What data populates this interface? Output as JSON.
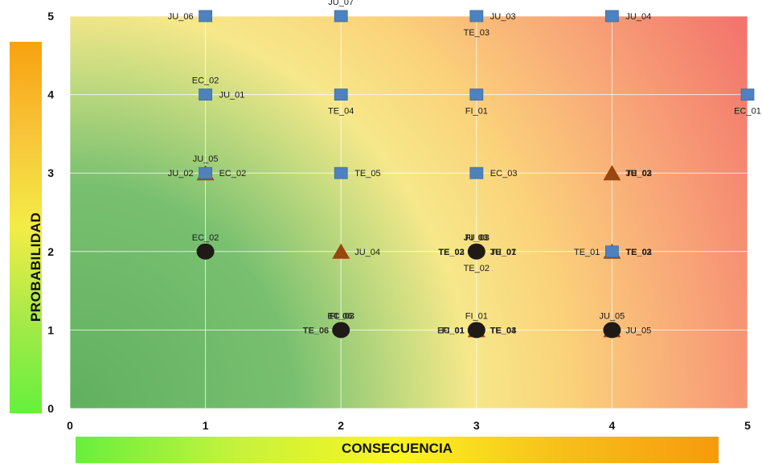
{
  "chart_data": {
    "type": "scatter",
    "xlabel": "CONSECUENCIA",
    "ylabel": "PROBABILIDAD",
    "xlim": [
      0,
      5
    ],
    "ylim": [
      0,
      5
    ],
    "xticks": [
      "0",
      "1",
      "2",
      "3",
      "4",
      "5"
    ],
    "yticks": [
      "0",
      "1",
      "2",
      "3",
      "4",
      "5"
    ],
    "grid": true,
    "background": "green-yellow-red risk gradient (low at bottom-left, high at top-right)",
    "colors": {
      "square": "#4f81bd",
      "triangle": "#994710",
      "circle": "#1f1a17"
    },
    "series": [
      {
        "marker": "square",
        "points": [
          {
            "x": 1,
            "y": 5
          },
          {
            "x": 2,
            "y": 5
          },
          {
            "x": 3,
            "y": 5
          },
          {
            "x": 4,
            "y": 5
          },
          {
            "x": 1,
            "y": 4
          },
          {
            "x": 2,
            "y": 4
          },
          {
            "x": 3,
            "y": 4
          },
          {
            "x": 5,
            "y": 4
          },
          {
            "x": 1,
            "y": 3
          },
          {
            "x": 2,
            "y": 3
          },
          {
            "x": 3,
            "y": 3
          },
          {
            "x": 4,
            "y": 2
          }
        ]
      },
      {
        "marker": "triangle",
        "points": [
          {
            "x": 1,
            "y": 3
          },
          {
            "x": 4,
            "y": 3
          },
          {
            "x": 2,
            "y": 2
          },
          {
            "x": 4,
            "y": 2
          },
          {
            "x": 3,
            "y": 1
          },
          {
            "x": 4,
            "y": 1
          }
        ]
      },
      {
        "marker": "circle",
        "points": [
          {
            "x": 1,
            "y": 2
          },
          {
            "x": 3,
            "y": 2
          },
          {
            "x": 2,
            "y": 1
          },
          {
            "x": 3,
            "y": 1
          },
          {
            "x": 4,
            "y": 1
          }
        ]
      }
    ],
    "labels": [
      {
        "x": 1,
        "y": 5,
        "text": "JU_06",
        "pos": "left"
      },
      {
        "x": 2,
        "y": 5,
        "text": "JU_07",
        "pos": "top"
      },
      {
        "x": 3,
        "y": 5,
        "text": "JU_03",
        "pos": "right"
      },
      {
        "x": 3,
        "y": 5,
        "text": "TE_03",
        "pos": "bottom"
      },
      {
        "x": 4,
        "y": 5,
        "text": "JU_04",
        "pos": "right"
      },
      {
        "x": 1,
        "y": 4,
        "text": "EC_02",
        "pos": "top"
      },
      {
        "x": 1,
        "y": 4,
        "text": "JU_01",
        "pos": "right"
      },
      {
        "x": 2,
        "y": 4,
        "text": "TE_04",
        "pos": "bottom"
      },
      {
        "x": 3,
        "y": 4,
        "text": "FI_01",
        "pos": "bottom"
      },
      {
        "x": 5,
        "y": 4,
        "text": "EC_01",
        "pos": "bottom"
      },
      {
        "x": 1,
        "y": 3,
        "text": "JU_05",
        "pos": "top"
      },
      {
        "x": 1,
        "y": 3,
        "text": "JU_02",
        "pos": "left"
      },
      {
        "x": 1,
        "y": 3,
        "text": "EC_02",
        "pos": "right"
      },
      {
        "x": 2,
        "y": 3,
        "text": "TE_05",
        "pos": "right"
      },
      {
        "x": 3,
        "y": 3,
        "text": "EC_03",
        "pos": "right"
      },
      {
        "x": 4,
        "y": 3,
        "text": "JU_03",
        "pos": "right",
        "bold": true
      },
      {
        "x": 4,
        "y": 3,
        "text": "TE_02",
        "pos": "right",
        "bold": true
      },
      {
        "x": 1,
        "y": 2,
        "text": "EC_02",
        "pos": "top"
      },
      {
        "x": 2,
        "y": 2,
        "text": "JU_04",
        "pos": "right"
      },
      {
        "x": 3,
        "y": 2,
        "text": "JU_03",
        "pos": "top",
        "bold": true
      },
      {
        "x": 3,
        "y": 2,
        "text": "FI_03",
        "pos": "top",
        "bold": true
      },
      {
        "x": 3,
        "y": 2,
        "text": "TE_02",
        "pos": "left",
        "bold": true
      },
      {
        "x": 3,
        "y": 2,
        "text": "TE_03",
        "pos": "left",
        "bold": true
      },
      {
        "x": 3,
        "y": 2,
        "text": "TE_07",
        "pos": "right",
        "bold": true
      },
      {
        "x": 3,
        "y": 2,
        "text": "JU_01",
        "pos": "right",
        "bold": true
      },
      {
        "x": 3,
        "y": 2,
        "text": "TE_02",
        "pos": "bottom"
      },
      {
        "x": 4,
        "y": 2,
        "text": "TE_01",
        "pos": "left"
      },
      {
        "x": 4,
        "y": 2,
        "text": "TE_02",
        "pos": "right",
        "bold": true
      },
      {
        "x": 4,
        "y": 2,
        "text": "TE_03",
        "pos": "right",
        "bold": true
      },
      {
        "x": 2,
        "y": 1,
        "text": "FI_06",
        "pos": "top",
        "bold": true
      },
      {
        "x": 2,
        "y": 1,
        "text": "EC_03",
        "pos": "top",
        "bold": true
      },
      {
        "x": 2,
        "y": 1,
        "text": "TE_06",
        "pos": "left",
        "bold": true
      },
      {
        "x": 3,
        "y": 1,
        "text": "FI_01",
        "pos": "top"
      },
      {
        "x": 3,
        "y": 1,
        "text": "FI_01",
        "pos": "left",
        "bold": true
      },
      {
        "x": 3,
        "y": 1,
        "text": "EC_01",
        "pos": "left",
        "bold": true
      },
      {
        "x": 3,
        "y": 1,
        "text": "TE_04",
        "pos": "right",
        "bold": true
      },
      {
        "x": 3,
        "y": 1,
        "text": "TE_03",
        "pos": "right",
        "bold": true
      },
      {
        "x": 4,
        "y": 1,
        "text": "JU_05",
        "pos": "top"
      },
      {
        "x": 4,
        "y": 1,
        "text": "JU_05",
        "pos": "right"
      }
    ]
  }
}
